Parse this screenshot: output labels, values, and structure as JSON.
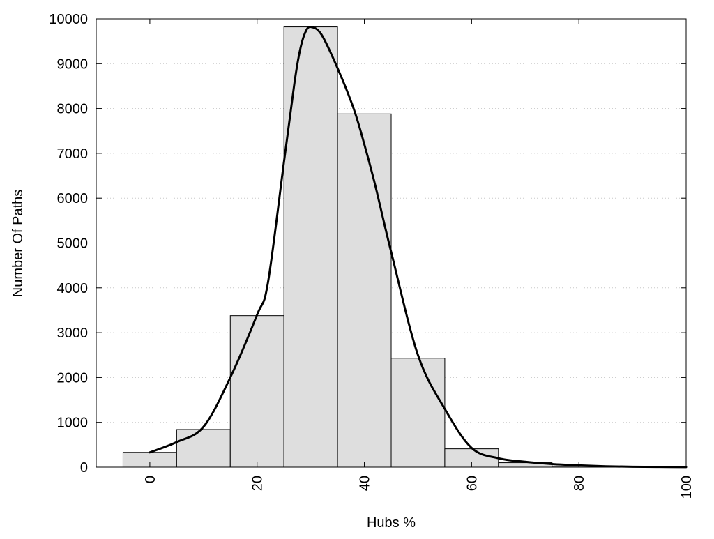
{
  "chart_data": {
    "type": "bar",
    "title": "",
    "xlabel": "Hubs %",
    "ylabel": "Number Of Paths",
    "bin_width": 10,
    "categories": [
      "0",
      "10",
      "20",
      "30",
      "40",
      "50",
      "60",
      "70",
      "80",
      "90",
      "100"
    ],
    "x": [
      0,
      10,
      20,
      30,
      40,
      50,
      60,
      70,
      80,
      90,
      100
    ],
    "values": [
      330,
      840,
      3380,
      9820,
      7880,
      2430,
      410,
      100,
      20,
      5,
      2
    ],
    "curve": {
      "x": [
        0,
        5,
        10,
        15,
        20,
        22,
        25,
        27,
        28,
        29,
        30,
        32,
        35,
        38,
        40,
        42,
        45,
        50,
        55,
        60,
        65,
        70,
        75,
        80,
        85,
        90,
        95,
        100
      ],
      "y": [
        330,
        560,
        900,
        2000,
        3400,
        4100,
        6800,
        8600,
        9300,
        9700,
        9820,
        9650,
        8900,
        8000,
        7200,
        6300,
        4800,
        2500,
        1300,
        430,
        200,
        120,
        70,
        40,
        20,
        10,
        5,
        2
      ]
    },
    "xlim": [
      -10,
      100
    ],
    "ylim": [
      0,
      10000
    ],
    "xticks": [
      0,
      20,
      40,
      60,
      80,
      100
    ],
    "yticks": [
      0,
      1000,
      2000,
      3000,
      4000,
      5000,
      6000,
      7000,
      8000,
      9000,
      10000
    ],
    "xtick_labels": [
      "0",
      "20",
      "40",
      "60",
      "80",
      "100"
    ],
    "ytick_labels": [
      "0",
      "1000",
      "2000",
      "3000",
      "4000",
      "5000",
      "6000",
      "7000",
      "8000",
      "9000",
      "10000"
    ],
    "grid": "horizontal-dotted",
    "legend": "none",
    "colors": {
      "bar_fill": "#dedede",
      "bar_stroke": "#000000",
      "curve": "#000000",
      "grid": "#c8c8c8",
      "frame": "#000000"
    }
  }
}
